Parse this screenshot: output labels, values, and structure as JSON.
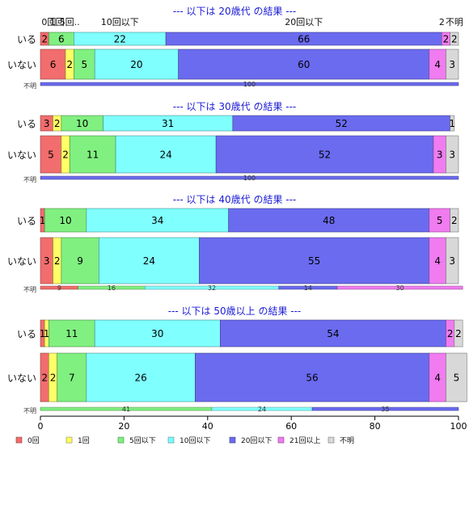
{
  "chart_data": {
    "type": "bar",
    "orientation": "horizontal",
    "stacked": true,
    "xlim": [
      0,
      100
    ],
    "xticks": [
      0,
      20,
      40,
      60,
      80,
      100
    ],
    "colors": [
      "#f26d6d",
      "#ffff66",
      "#80f080",
      "#80ffff",
      "#6b6bf0",
      "#f07cf0",
      "#d8d8d8"
    ],
    "legend": {
      "placement": "bottom",
      "items": [
        "0回",
        "1回",
        "5回以下",
        "10回以下",
        "20回以下",
        "21回以上",
        "不明"
      ]
    },
    "groups": [
      {
        "title": "--- 以下は 20歳代 の結果 ---",
        "top_labels": [
          {
            "text": "0回",
            "at": 2
          },
          {
            "text": "1回",
            "at": 4
          },
          {
            "text": "5回..",
            "at": 7
          },
          {
            "text": "10回以下",
            "at": 19
          },
          {
            "text": "20回以下",
            "at": 63
          },
          {
            "text": "2",
            "at": 96
          },
          {
            "text": "不明",
            "at": 99
          }
        ],
        "rows": [
          {
            "label": "いる",
            "values": [
              2,
              0,
              6,
              22,
              66,
              2,
              2
            ]
          },
          {
            "label": "いない",
            "values": [
              6,
              2,
              5,
              20,
              60,
              4,
              3
            ]
          }
        ],
        "unknown": {
          "label": "不明",
          "values": [
            0,
            0,
            0,
            0,
            100,
            0,
            0
          ],
          "texts": [
            "",
            "",
            "",
            "",
            "100",
            "",
            ""
          ]
        }
      },
      {
        "title": "--- 以下は 30歳代 の結果 ---",
        "rows": [
          {
            "label": "いる",
            "values": [
              3,
              2,
              10,
              31,
              52,
              0,
              1
            ]
          },
          {
            "label": "いない",
            "values": [
              5,
              2,
              11,
              24,
              52,
              3,
              3
            ]
          }
        ],
        "unknown": {
          "label": "不明",
          "values": [
            0,
            0,
            0,
            0,
            100,
            0,
            0
          ],
          "texts": [
            "",
            "",
            "",
            "",
            "100",
            "",
            ""
          ]
        }
      },
      {
        "title": "--- 以下は 40歳代 の結果 ---",
        "rows": [
          {
            "label": "いる",
            "values": [
              1,
              0,
              10,
              34,
              48,
              5,
              2
            ]
          },
          {
            "label": "いない",
            "values": [
              3,
              2,
              9,
              24,
              55,
              4,
              3
            ]
          }
        ],
        "unknown": {
          "label": "不明",
          "values": [
            9,
            0,
            16,
            32,
            14,
            30,
            0
          ],
          "texts": [
            "9",
            "",
            "16",
            "32",
            "14",
            "30",
            ""
          ]
        }
      },
      {
        "title": "--- 以下は 50歳以上 の結果 ---",
        "rows": [
          {
            "label": "いる",
            "values": [
              1,
              1,
              11,
              30,
              54,
              2,
              2
            ]
          },
          {
            "label": "いない",
            "values": [
              2,
              2,
              7,
              26,
              56,
              4,
              5
            ]
          }
        ],
        "unknown": {
          "label": "不明",
          "values": [
            0,
            0,
            41,
            24,
            35,
            0,
            0
          ],
          "texts": [
            "",
            "",
            "41",
            "24",
            "35",
            "",
            ""
          ]
        }
      }
    ]
  }
}
